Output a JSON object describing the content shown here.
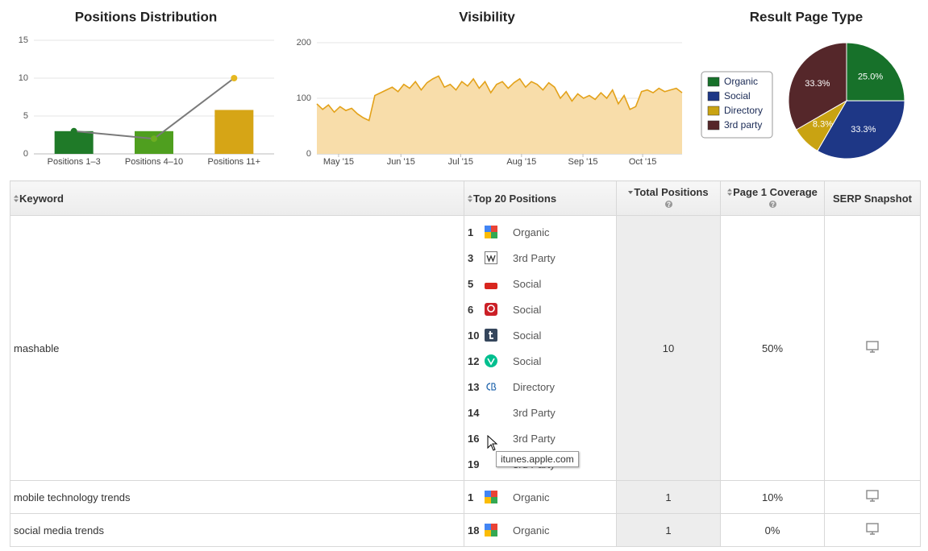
{
  "chart_data": [
    {
      "type": "bar",
      "title": "Positions Distribution",
      "categories": [
        "Positions 1–3",
        "Positions 4–10",
        "Positions 11+"
      ],
      "ylim": [
        0,
        15
      ],
      "yticks": [
        0,
        5,
        10,
        15
      ],
      "grid": true,
      "series": [
        {
          "type": "bar",
          "colors": [
            "#1f7a28",
            "#4f9f1f",
            "#d6a516"
          ],
          "values": [
            3,
            3,
            5.8
          ]
        },
        {
          "type": "line",
          "color": "#7a7a7a",
          "marker_colors": [
            "#1f7a28",
            "#6cae22",
            "#e6b820"
          ],
          "values": [
            3,
            2,
            10
          ]
        }
      ]
    },
    {
      "type": "area",
      "title": "Visibility",
      "values": [
        90,
        80,
        88,
        75,
        85,
        78,
        82,
        72,
        65,
        60,
        105,
        110,
        115,
        120,
        112,
        125,
        118,
        130,
        115,
        128,
        135,
        140,
        120,
        125,
        115,
        130,
        122,
        135,
        118,
        130,
        110,
        125,
        130,
        118,
        128,
        135,
        120,
        130,
        125,
        115,
        128,
        120,
        100,
        112,
        95,
        108,
        100,
        105,
        98,
        110,
        100,
        115,
        90,
        105,
        80,
        85,
        112,
        115,
        110,
        118,
        112,
        115,
        118,
        110
      ],
      "xlim": [
        0,
        63
      ],
      "xticks": [
        {
          "value": 3.75,
          "label": "May '15"
        },
        {
          "value": 14.5,
          "label": "Jun '15"
        },
        {
          "value": 24.8,
          "label": "Jul '15"
        },
        {
          "value": 35.3,
          "label": "Aug '15"
        },
        {
          "value": 45.9,
          "label": "Sep '15"
        },
        {
          "value": 56.2,
          "label": "Oct '15"
        }
      ],
      "ylim": [
        0,
        200
      ],
      "yticks": [
        0,
        100,
        200
      ],
      "grid": true,
      "color": "#e3a21a",
      "fill": "#f8ddaa"
    },
    {
      "type": "pie",
      "title": "Result Page Type",
      "categories": [
        "Organic",
        "Social",
        "Directory",
        "3rd party"
      ],
      "values": [
        25,
        33.3,
        8.3,
        33.3
      ],
      "value_labels": [
        "25.0%",
        "33.3%",
        "8.3%",
        "33.3%"
      ],
      "colors": [
        "#17712a",
        "#1e3786",
        "#c9a312",
        "#55272a"
      ],
      "legend": "left"
    }
  ],
  "table": {
    "headers": [
      "Keyword",
      "Top 20 Positions",
      "Total Positions",
      "Page 1 Coverage",
      "SERP Snapshot"
    ],
    "rows": [
      {
        "keyword": "mashable",
        "positions": [
          {
            "rank": 1,
            "type": "Organic"
          },
          {
            "rank": 3,
            "type": "3rd Party"
          },
          {
            "rank": 5,
            "type": "Social"
          },
          {
            "rank": 6,
            "type": "Social"
          },
          {
            "rank": 10,
            "type": "Social"
          },
          {
            "rank": 12,
            "type": "Social"
          },
          {
            "rank": 13,
            "type": "Directory"
          },
          {
            "rank": 14,
            "type": "3rd Party"
          },
          {
            "rank": 16,
            "type": "3rd Party"
          },
          {
            "rank": 19,
            "type": "3rd Party"
          }
        ],
        "total": 10,
        "coverage": "50%"
      },
      {
        "keyword": "mobile technology trends",
        "positions": [
          {
            "rank": 1,
            "type": "Organic"
          }
        ],
        "total": 1,
        "coverage": "10%"
      },
      {
        "keyword": "social media trends",
        "positions": [
          {
            "rank": 18,
            "type": "Organic"
          }
        ],
        "total": 1,
        "coverage": "0%"
      }
    ],
    "tooltip": "itunes.apple.com"
  }
}
